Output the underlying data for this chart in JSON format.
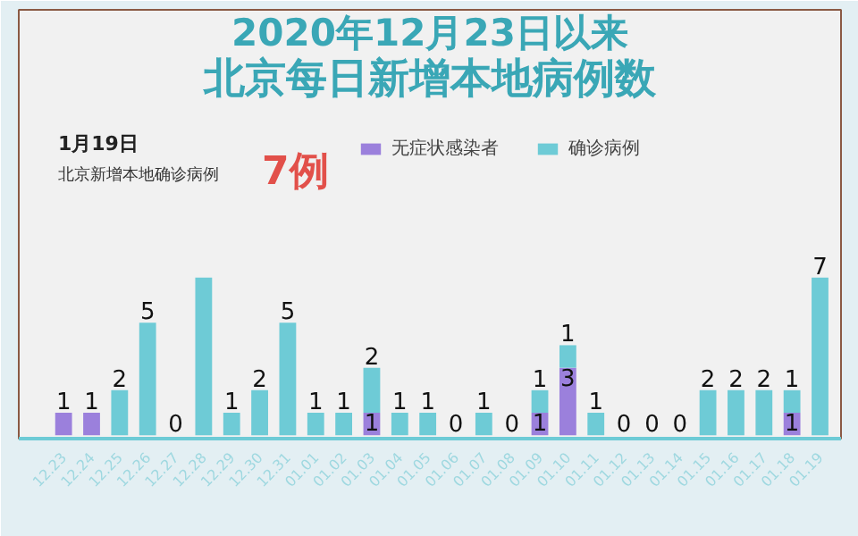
{
  "chart_data": {
    "type": "bar",
    "stacked": true,
    "title": "2020年12月23日以来",
    "subtitle": "北京每日新增本地病例数",
    "annotations": [
      "1月19日",
      "北京新增本地确诊病例",
      "7例"
    ],
    "categories": [
      "12.23",
      "12.24",
      "12.25",
      "12.26",
      "12.27",
      "12.28",
      "12.29",
      "12.30",
      "12.31",
      "01.01",
      "01.02",
      "01.03",
      "01.04",
      "01.05",
      "01.06",
      "01.07",
      "01.08",
      "01.09",
      "01.10",
      "01.11",
      "01.12",
      "01.13",
      "01.14",
      "01.15",
      "01.16",
      "01.17",
      "01.18",
      "01.19"
    ],
    "series": [
      {
        "name": "无症状感染者",
        "color": "#9b80dc",
        "values": [
          1,
          1,
          0,
          0,
          0,
          0,
          0,
          0,
          0,
          0,
          0,
          1,
          0,
          0,
          0,
          0,
          0,
          1,
          3,
          0,
          0,
          0,
          0,
          0,
          0,
          0,
          1,
          0
        ],
        "value_labels": [
          "1",
          "1",
          null,
          null,
          null,
          null,
          null,
          null,
          null,
          null,
          null,
          "1",
          null,
          null,
          null,
          null,
          null,
          "1",
          "3",
          null,
          null,
          null,
          null,
          null,
          null,
          null,
          "1",
          null
        ]
      },
      {
        "name": "确诊病例",
        "color": "#6ecbd6",
        "values": [
          0,
          0,
          2,
          5,
          0,
          7,
          1,
          2,
          5,
          1,
          1,
          2,
          1,
          1,
          0,
          1,
          0,
          1,
          1,
          1,
          0,
          0,
          0,
          2,
          2,
          2,
          1,
          7
        ],
        "value_labels": [
          null,
          null,
          "2",
          "5",
          "0",
          null,
          "1",
          "2",
          "5",
          "1",
          "1",
          "2",
          "1",
          "1",
          "0",
          "1",
          "0",
          "1",
          "1",
          "1",
          "0",
          "0",
          "0",
          "2",
          "2",
          "2",
          "1",
          "7"
        ]
      }
    ],
    "legend": "top",
    "grid": false
  }
}
